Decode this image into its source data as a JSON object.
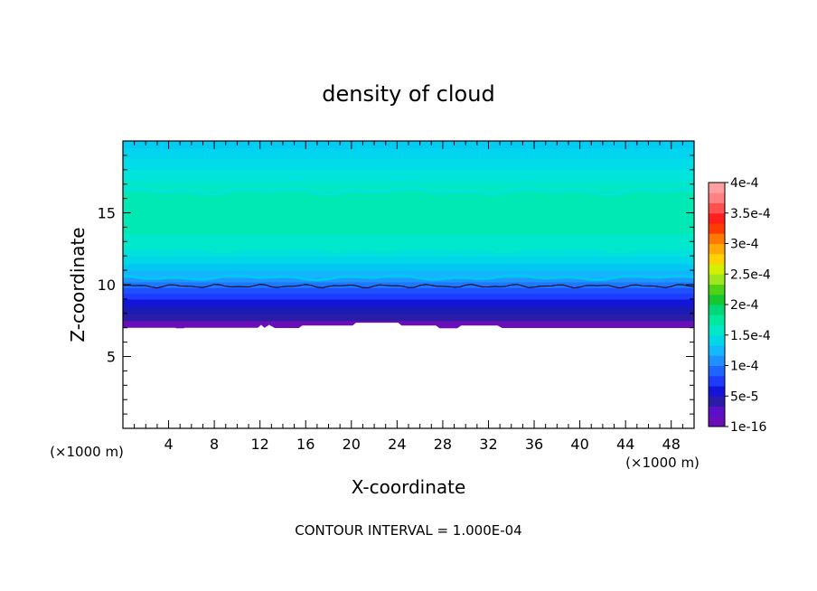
{
  "chart_data": {
    "type": "heatmap",
    "title": "density of cloud",
    "xlabel": "X-coordinate",
    "ylabel": "Z-coordinate",
    "x_unit": "(×1000 m)",
    "y_unit": "(×1000 m)",
    "xlim": [
      0,
      50
    ],
    "ylim": [
      0,
      20
    ],
    "x_ticks": [
      4,
      8,
      12,
      16,
      20,
      24,
      28,
      32,
      36,
      40,
      44,
      48
    ],
    "y_ticks": [
      5,
      10,
      15
    ],
    "footer": "CONTOUR INTERVAL = 1.000E-04",
    "colorbar": {
      "labels": [
        "1e-16",
        "5e-5",
        "1e-4",
        "1.5e-4",
        "2e-4",
        "2.5e-4",
        "3e-4",
        "3.5e-4",
        "4e-4"
      ],
      "colors": [
        "#6a0fb8",
        "#5a10c8",
        "#2b1ca8",
        "#1414d8",
        "#1e3cff",
        "#1e64ff",
        "#1e90ff",
        "#14b8ff",
        "#00d8e8",
        "#00e8c8",
        "#00e8a0",
        "#00d878",
        "#14c832",
        "#50d214",
        "#a0e61e",
        "#d2f000",
        "#ffd200",
        "#ffaa00",
        "#ff7800",
        "#ff3c00",
        "#ff1e1e",
        "#ff5050",
        "#ff8080",
        "#ffa0a0"
      ]
    },
    "profile_z": [
      7.0,
      7.5,
      8.0,
      8.5,
      9.0,
      9.4,
      9.8,
      10.2,
      10.5,
      11.0,
      11.5,
      12.0,
      12.5,
      13.5,
      16.5,
      17.2,
      18.0,
      18.8,
      19.5,
      20.0
    ],
    "profile_colors": [
      "#6a0fb8",
      "#2b1ca8",
      "#1a1ab4",
      "#1414d8",
      "#1e3cff",
      "#1e50ff",
      "#1e78ff",
      "#1e96ff",
      "#14b4ff",
      "#00c8f0",
      "#00d8e8",
      "#00e0dc",
      "#00e8cc",
      "#00e8b4",
      "#00e8c8",
      "#00e4dc",
      "#00dce8",
      "#00d4ee",
      "#00ccf4"
    ],
    "contour_z": 9.9,
    "cloud_base": [
      [
        0,
        7.0
      ],
      [
        4.6,
        7.0
      ],
      [
        5.0,
        6.8
      ],
      [
        5.4,
        7.0
      ],
      [
        11.8,
        7.0
      ],
      [
        12.1,
        7.2
      ],
      [
        12.4,
        7.0
      ],
      [
        12.8,
        7.2
      ],
      [
        13.3,
        6.98
      ],
      [
        15.4,
        6.98
      ],
      [
        15.7,
        7.15
      ],
      [
        20.1,
        7.15
      ],
      [
        20.4,
        7.35
      ],
      [
        24.1,
        7.35
      ],
      [
        24.4,
        7.15
      ],
      [
        27.4,
        7.15
      ],
      [
        27.8,
        6.92
      ],
      [
        29.2,
        6.92
      ],
      [
        29.6,
        7.15
      ],
      [
        32.8,
        7.15
      ],
      [
        33.2,
        6.98
      ],
      [
        50,
        6.98
      ]
    ]
  }
}
